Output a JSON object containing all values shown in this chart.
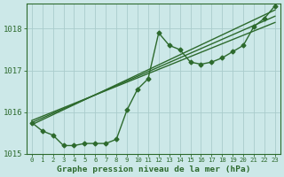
{
  "hours": [
    0,
    1,
    2,
    3,
    4,
    5,
    6,
    7,
    8,
    9,
    10,
    11,
    12,
    13,
    14,
    15,
    16,
    17,
    18,
    19,
    20,
    21,
    22,
    23
  ],
  "pressure_main": [
    1015.75,
    1015.55,
    1015.45,
    1015.2,
    1015.2,
    1015.25,
    1015.25,
    1015.25,
    1015.35,
    1016.05,
    1016.55,
    1016.8,
    1017.9,
    1017.6,
    1017.5,
    1017.2,
    1017.15,
    1017.2,
    1017.3,
    1017.45,
    1017.6,
    1018.05,
    1018.25,
    1018.55
  ],
  "line1_x": [
    0,
    23
  ],
  "line1_y": [
    1015.7,
    1018.45
  ],
  "line2_x": [
    0,
    23
  ],
  "line2_y": [
    1015.75,
    1018.3
  ],
  "line3_x": [
    0,
    23
  ],
  "line3_y": [
    1015.8,
    1018.15
  ],
  "ylim": [
    1015.0,
    1018.6
  ],
  "yticks": [
    1015,
    1016,
    1017,
    1018
  ],
  "xlim": [
    -0.5,
    23.5
  ],
  "xtick_labels": [
    "0",
    "1",
    "2",
    "3",
    "4",
    "5",
    "6",
    "7",
    "8",
    "9",
    "10",
    "11",
    "12",
    "13",
    "14",
    "15",
    "16",
    "17",
    "18",
    "19",
    "20",
    "21",
    "22",
    "23"
  ],
  "line_color": "#2d6a2d",
  "bg_color": "#cce8e8",
  "grid_color": "#aacccc",
  "xlabel": "Graphe pression niveau de la mer (hPa)",
  "marker": "D",
  "marker_size": 2.5,
  "linewidth": 1.0,
  "straight_linewidth": 1.0
}
